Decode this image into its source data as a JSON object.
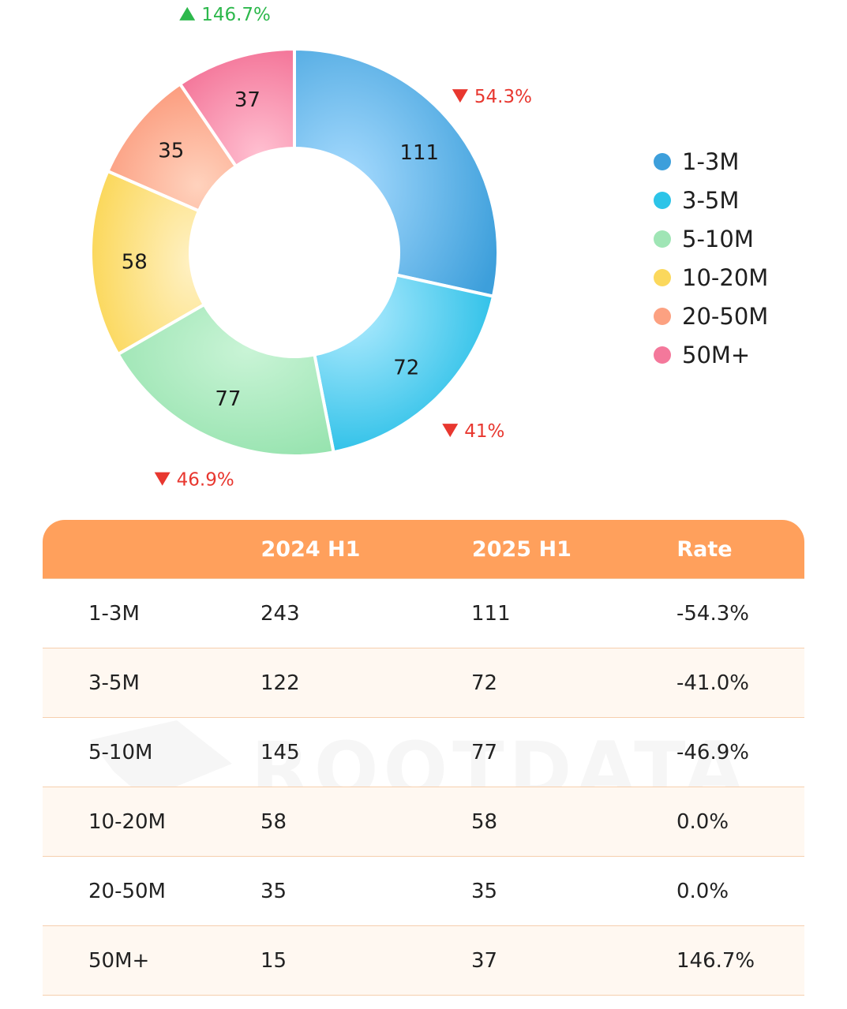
{
  "chart_data": {
    "type": "pie",
    "variant": "donut",
    "categories": [
      "1-3M",
      "3-5M",
      "5-10M",
      "10-20M",
      "20-50M",
      "50M+"
    ],
    "values": [
      111,
      72,
      77,
      58,
      35,
      37
    ],
    "colors": [
      "#3d9fdb",
      "#2cc4e8",
      "#9fe5b5",
      "#fbd85c",
      "#fca181",
      "#f4789b"
    ],
    "slice_labels": [
      "111",
      "72",
      "77",
      "58",
      "35",
      "37"
    ],
    "annotations": [
      {
        "category": "1-3M",
        "direction": "down",
        "text": "54.3%"
      },
      {
        "category": "3-5M",
        "direction": "down",
        "text": "41%"
      },
      {
        "category": "5-10M",
        "direction": "down",
        "text": "46.9%"
      },
      {
        "category": "50M+",
        "direction": "up",
        "text": "146.7%"
      }
    ],
    "legend_position": "right"
  },
  "colors": {
    "up": "#2db84c",
    "down": "#e8372f",
    "header": "#ffa05c"
  },
  "table": {
    "headers": [
      "",
      "2024 H1",
      "2025 H1",
      "Rate"
    ],
    "rows": [
      [
        "1-3M",
        "243",
        "111",
        "-54.3%"
      ],
      [
        "3-5M",
        "122",
        "72",
        "-41.0%"
      ],
      [
        "5-10M",
        "145",
        "77",
        "-46.9%"
      ],
      [
        "10-20M",
        "58",
        "58",
        "0.0%"
      ],
      [
        "20-50M",
        "35",
        "35",
        "0.0%"
      ],
      [
        "50M+",
        "15",
        "37",
        "146.7%"
      ]
    ]
  },
  "watermark": "ROOTDATA"
}
